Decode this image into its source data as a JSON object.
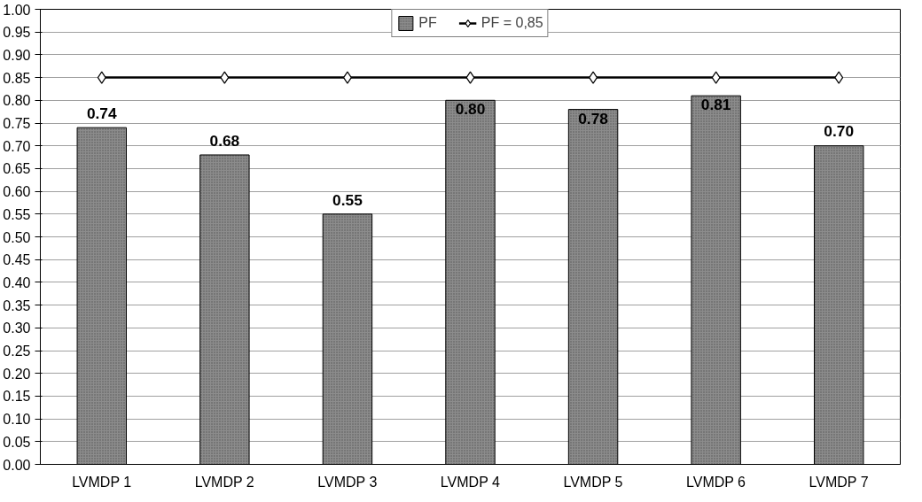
{
  "chart_data": {
    "type": "bar",
    "categories": [
      "LVMDP 1",
      "LVMDP 2",
      "LVMDP 3",
      "LVMDP 4",
      "LVMDP 5",
      "LVMDP 6",
      "LVMDP 7"
    ],
    "series": [
      {
        "name": "PF",
        "color": "#8c8c8c",
        "values": [
          0.74,
          0.68,
          0.55,
          0.8,
          0.78,
          0.81,
          0.7
        ],
        "value_labels": [
          "0.74",
          "0.68",
          "0.55",
          "0.80",
          "0.78",
          "0.81",
          "0.70"
        ]
      },
      {
        "name": "PF = 0,85",
        "type": "line",
        "color": "#000000",
        "marker": "diamond",
        "values": [
          0.85,
          0.85,
          0.85,
          0.85,
          0.85,
          0.85,
          0.85
        ]
      }
    ],
    "ylim": [
      0,
      1
    ],
    "yticks": [
      {
        "value": 0,
        "label": "0.00"
      },
      {
        "value": 0.05,
        "label": "0.05"
      },
      {
        "value": 0.1,
        "label": "0.10"
      },
      {
        "value": 0.15,
        "label": "0.15"
      },
      {
        "value": 0.2,
        "label": "0.20"
      },
      {
        "value": 0.25,
        "label": "0.25"
      },
      {
        "value": 0.3,
        "label": "0.30"
      },
      {
        "value": 0.35,
        "label": "0.35"
      },
      {
        "value": 0.4,
        "label": "0.40"
      },
      {
        "value": 0.45,
        "label": "0.45"
      },
      {
        "value": 0.5,
        "label": "0.50"
      },
      {
        "value": 0.55,
        "label": "0.55"
      },
      {
        "value": 0.6,
        "label": "0.60"
      },
      {
        "value": 0.65,
        "label": "0.65"
      },
      {
        "value": 0.7,
        "label": "0.70"
      },
      {
        "value": 0.75,
        "label": "0.75"
      },
      {
        "value": 0.8,
        "label": "0.80"
      },
      {
        "value": 0.85,
        "label": "0.85"
      },
      {
        "value": 0.9,
        "label": "0.90"
      },
      {
        "value": 0.95,
        "label": "0.95"
      },
      {
        "value": 1,
        "label": "1.00"
      }
    ],
    "grid": "y",
    "legend": "top"
  }
}
